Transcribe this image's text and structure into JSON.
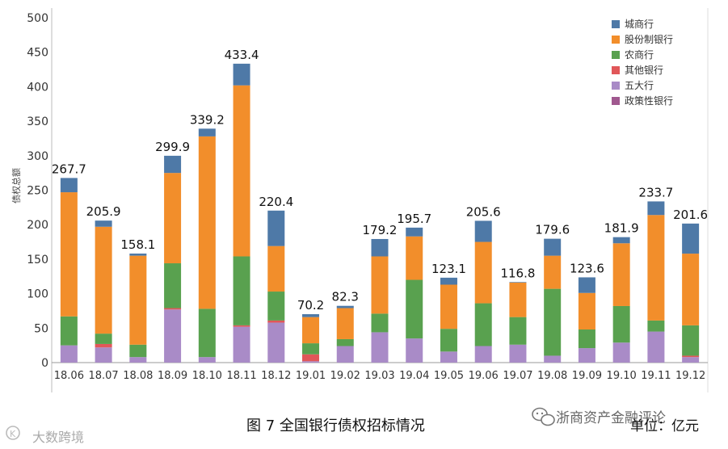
{
  "chart_data": {
    "type": "bar",
    "stacked": true,
    "title": "",
    "xlabel": "",
    "ylabel": "债权总额",
    "ylim": [
      0,
      500
    ],
    "yticks": [
      0,
      50,
      100,
      150,
      200,
      250,
      300,
      350,
      400,
      450,
      500
    ],
    "legend_position": "top-right",
    "categories": [
      "18.06",
      "18.07",
      "18.08",
      "18.09",
      "18.10",
      "18.11",
      "18.12",
      "19.01",
      "19.02",
      "19.03",
      "19.04",
      "19.05",
      "19.06",
      "19.07",
      "19.08",
      "19.09",
      "19.10",
      "19.11",
      "19.12"
    ],
    "totals": [
      267.7,
      205.9,
      158.1,
      299.9,
      339.2,
      433.4,
      220.4,
      70.2,
      82.3,
      179.2,
      195.7,
      123.1,
      205.6,
      116.8,
      179.6,
      123.6,
      181.9,
      233.7,
      201.6
    ],
    "total_labels": [
      "267.7",
      "205.9",
      "158.1",
      "299.9",
      "339.2",
      "433.4",
      "220.4",
      "70.2",
      "82.3",
      "179.2",
      "195.7",
      "123.1",
      "205.6",
      "116.8",
      "179.6",
      "123.6",
      "181.9",
      "233.7",
      "201.6"
    ],
    "series": [
      {
        "name": "政策性银行",
        "color": "#a0588f",
        "values": [
          0,
          0,
          0,
          0,
          0,
          0,
          0,
          0,
          0,
          0,
          0,
          0,
          0,
          0,
          0,
          0,
          0,
          0,
          0
        ]
      },
      {
        "name": "五大行",
        "color": "#a98bc7",
        "values": [
          25,
          22,
          8,
          77,
          8,
          52,
          58,
          2,
          24,
          44,
          35,
          16,
          24,
          26,
          10,
          21,
          29,
          45,
          8
        ]
      },
      {
        "name": "其他银行",
        "color": "#e15759",
        "values": [
          0,
          5,
          0,
          2,
          0,
          2,
          3,
          10,
          0,
          0,
          0,
          0,
          0,
          0,
          0,
          0,
          0,
          0,
          2
        ]
      },
      {
        "name": "农商行",
        "color": "#59a14f",
        "values": [
          42,
          15,
          18,
          65,
          70,
          100,
          42,
          16,
          10,
          27,
          85,
          33,
          62,
          40,
          97,
          27,
          53,
          16,
          44
        ]
      },
      {
        "name": "股份制银行",
        "color": "#f28e2b",
        "values": [
          180,
          155,
          129,
          131,
          250,
          248,
          66,
          38,
          45,
          83,
          63,
          64,
          89,
          50,
          48,
          53,
          91,
          153,
          104
        ]
      },
      {
        "name": "城商行",
        "color": "#4e79a7",
        "values": [
          20.7,
          8.9,
          3.1,
          24.9,
          11.2,
          31.4,
          51.4,
          4.2,
          3.3,
          25.2,
          12.7,
          10.1,
          30.6,
          0.8,
          24.6,
          22.6,
          8.9,
          19.7,
          43.6
        ]
      }
    ],
    "legend_order": [
      "城商行",
      "股份制银行",
      "农商行",
      "其他银行",
      "五大行",
      "政策性银行"
    ]
  },
  "caption": "图 7  全国银行债权招标情况",
  "unit_label": "单位：亿元",
  "watermark_account": "浙商资产金融评论",
  "watermark_corner": "大数跨境"
}
